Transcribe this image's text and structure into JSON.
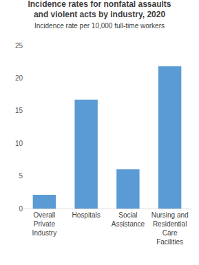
{
  "chart_data": {
    "type": "bar",
    "title": "Incidence rates for nonfatal assaults and violent acts by industry, 2020",
    "subtitle": "Incidence rate per 10,000 full-time workers",
    "categories": [
      "Overall Private Industry",
      "Hospitals",
      "Social Assistance",
      "Nursing and Residential Care Facilities"
    ],
    "values": [
      2.1,
      16.7,
      6.0,
      21.8
    ],
    "color": "#5b9bd5",
    "ylim": [
      0,
      25
    ],
    "yticks": [
      0,
      5,
      10,
      15,
      20,
      25
    ],
    "grid": false
  }
}
